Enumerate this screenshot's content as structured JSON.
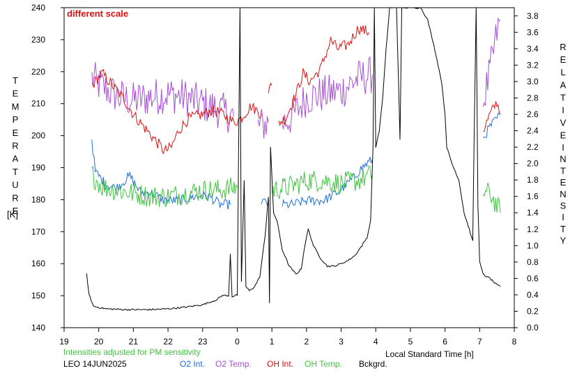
{
  "chart_data": {
    "type": "line",
    "note_label": "different scale",
    "left_axis": {
      "title_letters": [
        "T",
        "E",
        "M",
        "P",
        "E",
        "R",
        "A",
        "T",
        "U",
        "R",
        "E"
      ],
      "unit": "[K]",
      "ylim": [
        140,
        240
      ],
      "ticks": [
        140,
        150,
        160,
        170,
        180,
        190,
        200,
        210,
        220,
        230,
        240
      ]
    },
    "right_axis": {
      "title_letters_1": [
        "R",
        "E",
        "L",
        "A",
        "T",
        "I",
        "V",
        "E"
      ],
      "title_letters_2": [
        "I",
        "N",
        "T",
        "E",
        "N",
        "S",
        "I",
        "T",
        "Y"
      ],
      "ylim": [
        0.0,
        3.9
      ],
      "ticks": [
        "0.0",
        "0.2",
        "0.4",
        "0.6",
        "0.8",
        "1.0",
        "1.2",
        "1.4",
        "1.6",
        "1.8",
        "2.0",
        "2.2",
        "2.4",
        "2.6",
        "2.8",
        "3.0",
        "3.2",
        "3.4",
        "3.6",
        "3.8"
      ]
    },
    "x_axis": {
      "label": "Local Standard Time [h]",
      "xlim": [
        19,
        32
      ],
      "tick_labels": [
        "19",
        "20",
        "21",
        "22",
        "23",
        "0",
        "1",
        "2",
        "3",
        "4",
        "5",
        "6",
        "7",
        "8"
      ]
    },
    "footer": {
      "note": "Intensities adjusted for PM sensitivity",
      "site_date": "LEO 14JUN2025"
    },
    "legend": [
      {
        "label": "O2 Int.",
        "color": "#1e6fd9"
      },
      {
        "label": "O2 Temp.",
        "color": "#a64fd8"
      },
      {
        "label": "OH Int.",
        "color": "#e01010"
      },
      {
        "label": "OH Temp.",
        "color": "#3ec43e"
      },
      {
        "label": "Bckgrd.",
        "color": "#000000"
      }
    ],
    "series": [
      {
        "name": "O2 Temp.",
        "color": "#a64fd8",
        "axis": "left",
        "noise": 6,
        "segments": [
          [
            [
              19.8,
              218
            ],
            [
              20.0,
              216
            ],
            [
              20.3,
              214
            ],
            [
              20.6,
              212
            ],
            [
              21.0,
              211
            ],
            [
              21.5,
              212
            ],
            [
              22.0,
              213
            ],
            [
              22.5,
              212
            ],
            [
              23.0,
              210
            ],
            [
              23.5,
              208
            ],
            [
              23.9,
              206
            ]
          ],
          [
            [
              24.6,
              203
            ],
            [
              24.9,
              204
            ]
          ],
          [
            [
              25.3,
              204
            ],
            [
              25.6,
              206
            ],
            [
              26.0,
              212
            ],
            [
              26.5,
              213
            ],
            [
              27.0,
              214
            ],
            [
              27.5,
              218
            ],
            [
              27.9,
              219
            ]
          ],
          [
            [
              31.1,
              210
            ],
            [
              31.3,
              220
            ],
            [
              31.5,
              232
            ],
            [
              31.6,
              236
            ]
          ]
        ]
      },
      {
        "name": "OH Int.",
        "color": "#e01010",
        "axis": "right",
        "noise": 0.07,
        "segments": [
          [
            [
              19.8,
              2.95
            ],
            [
              20.1,
              3.1
            ],
            [
              20.4,
              2.95
            ],
            [
              20.7,
              2.8
            ],
            [
              21.0,
              2.6
            ],
            [
              21.3,
              2.45
            ],
            [
              21.6,
              2.3
            ],
            [
              21.9,
              2.15
            ],
            [
              22.1,
              2.2
            ],
            [
              22.3,
              2.4
            ],
            [
              22.6,
              2.55
            ],
            [
              23.0,
              2.6
            ],
            [
              23.3,
              2.65
            ],
            [
              23.6,
              2.6
            ],
            [
              23.9,
              2.5
            ],
            [
              24.1,
              2.55
            ],
            [
              24.4,
              2.7
            ],
            [
              24.7,
              2.6
            ]
          ],
          [
            [
              24.9,
              2.9
            ],
            [
              25.0,
              2.95
            ]
          ],
          [
            [
              25.2,
              2.5
            ],
            [
              25.4,
              2.55
            ],
            [
              25.7,
              2.85
            ],
            [
              25.9,
              3.1
            ],
            [
              26.1,
              3.0
            ],
            [
              26.4,
              3.15
            ],
            [
              26.7,
              3.5
            ],
            [
              26.9,
              3.4
            ],
            [
              27.2,
              3.45
            ],
            [
              27.5,
              3.65
            ],
            [
              27.8,
              3.6
            ]
          ],
          [
            [
              31.1,
              2.4
            ],
            [
              31.3,
              2.6
            ],
            [
              31.5,
              2.75
            ],
            [
              31.6,
              2.6
            ]
          ]
        ]
      },
      {
        "name": "O2 Int.",
        "color": "#1e6fd9",
        "axis": "right",
        "noise": 0.06,
        "segments": [
          [
            [
              19.8,
              2.3
            ],
            [
              19.9,
              1.9
            ],
            [
              20.2,
              1.75
            ],
            [
              20.5,
              1.7
            ],
            [
              20.9,
              1.85
            ],
            [
              21.2,
              1.65
            ],
            [
              21.5,
              1.65
            ],
            [
              21.9,
              1.55
            ],
            [
              22.3,
              1.55
            ],
            [
              22.8,
              1.6
            ],
            [
              23.2,
              1.6
            ],
            [
              23.5,
              1.5
            ],
            [
              23.8,
              1.5
            ]
          ],
          [
            [
              24.7,
              1.55
            ],
            [
              24.9,
              1.5
            ]
          ],
          [
            [
              25.3,
              1.5
            ],
            [
              25.6,
              1.5
            ],
            [
              26.0,
              1.55
            ],
            [
              26.5,
              1.55
            ],
            [
              26.9,
              1.65
            ],
            [
              27.3,
              1.8
            ],
            [
              27.6,
              1.95
            ],
            [
              27.9,
              2.05
            ]
          ],
          [
            [
              31.1,
              2.3
            ],
            [
              31.3,
              2.45
            ],
            [
              31.5,
              2.55
            ],
            [
              31.6,
              2.6
            ]
          ]
        ]
      },
      {
        "name": "OH Temp.",
        "color": "#3ec43e",
        "axis": "left",
        "noise": 3.5,
        "segments": [
          [
            [
              19.8,
              188
            ],
            [
              20.1,
              184
            ],
            [
              20.5,
              183
            ],
            [
              21.0,
              182
            ],
            [
              21.5,
              181
            ],
            [
              22.0,
              181
            ],
            [
              22.5,
              182
            ],
            [
              23.0,
              183
            ],
            [
              23.5,
              183
            ],
            [
              24.0,
              184
            ]
          ],
          [
            [
              25.0,
              183
            ],
            [
              25.5,
              184
            ],
            [
              26.0,
              186
            ],
            [
              26.5,
              186
            ],
            [
              27.0,
              185
            ],
            [
              27.5,
              186
            ],
            [
              27.9,
              188
            ]
          ],
          [
            [
              31.1,
              182
            ],
            [
              31.3,
              182
            ],
            [
              31.5,
              178
            ],
            [
              31.6,
              176
            ]
          ]
        ]
      },
      {
        "name": "Bckgrd.",
        "color": "#000000",
        "axis": "right",
        "noise": 0.01,
        "segments": [
          [
            [
              19.65,
              0.66
            ],
            [
              19.72,
              0.4
            ],
            [
              19.85,
              0.26
            ],
            [
              20.2,
              0.23
            ],
            [
              20.8,
              0.22
            ],
            [
              21.5,
              0.22
            ],
            [
              22.0,
              0.23
            ],
            [
              22.5,
              0.25
            ],
            [
              23.0,
              0.28
            ],
            [
              23.4,
              0.34
            ],
            [
              23.6,
              0.4
            ],
            [
              23.75,
              0.38
            ],
            [
              23.8,
              0.9
            ],
            [
              23.85,
              0.38
            ],
            [
              24.0,
              0.4
            ],
            [
              24.08,
              3.9
            ],
            [
              24.12,
              0.55
            ],
            [
              24.2,
              1.8
            ],
            [
              24.25,
              0.5
            ],
            [
              24.35,
              0.45
            ],
            [
              24.5,
              0.5
            ],
            [
              24.65,
              0.62
            ],
            [
              24.8,
              1.1
            ],
            [
              24.9,
              1.6
            ],
            [
              24.93,
              0.3
            ],
            [
              24.96,
              2.2
            ],
            [
              25.05,
              1.4
            ],
            [
              25.15,
              1.3
            ],
            [
              25.3,
              0.95
            ],
            [
              25.5,
              0.75
            ],
            [
              25.7,
              0.65
            ],
            [
              25.85,
              0.72
            ],
            [
              25.95,
              1.0
            ],
            [
              26.05,
              1.2
            ],
            [
              26.2,
              1.0
            ],
            [
              26.4,
              0.85
            ],
            [
              26.6,
              0.75
            ],
            [
              26.8,
              0.75
            ],
            [
              27.0,
              0.78
            ],
            [
              27.2,
              0.82
            ],
            [
              27.4,
              0.88
            ],
            [
              27.6,
              1.0
            ],
            [
              27.75,
              1.1
            ],
            [
              27.85,
              1.3
            ],
            [
              27.92,
              2.2
            ],
            [
              27.96,
              3.9
            ],
            [
              28.0,
              2.2
            ],
            [
              28.1,
              2.4
            ],
            [
              28.2,
              2.8
            ],
            [
              28.3,
              3.4
            ],
            [
              28.4,
              3.9
            ],
            [
              28.5,
              3.9
            ],
            [
              28.6,
              3.9
            ],
            [
              28.7,
              2.3
            ],
            [
              28.75,
              3.9
            ],
            [
              28.8,
              3.9
            ],
            [
              29.0,
              3.9
            ],
            [
              29.3,
              3.9
            ],
            [
              29.5,
              3.75
            ],
            [
              29.7,
              3.4
            ],
            [
              29.9,
              3.0
            ],
            [
              30.0,
              2.6
            ],
            [
              30.05,
              2.2
            ],
            [
              30.2,
              2.0
            ],
            [
              30.4,
              1.8
            ],
            [
              30.55,
              1.4
            ],
            [
              30.7,
              1.2
            ],
            [
              30.8,
              1.05
            ],
            [
              30.85,
              2.6
            ],
            [
              30.9,
              3.9
            ],
            [
              30.95,
              1.5
            ],
            [
              31.0,
              0.8
            ],
            [
              31.1,
              0.65
            ],
            [
              31.3,
              0.6
            ],
            [
              31.5,
              0.52
            ],
            [
              31.6,
              0.5
            ]
          ]
        ]
      }
    ]
  }
}
